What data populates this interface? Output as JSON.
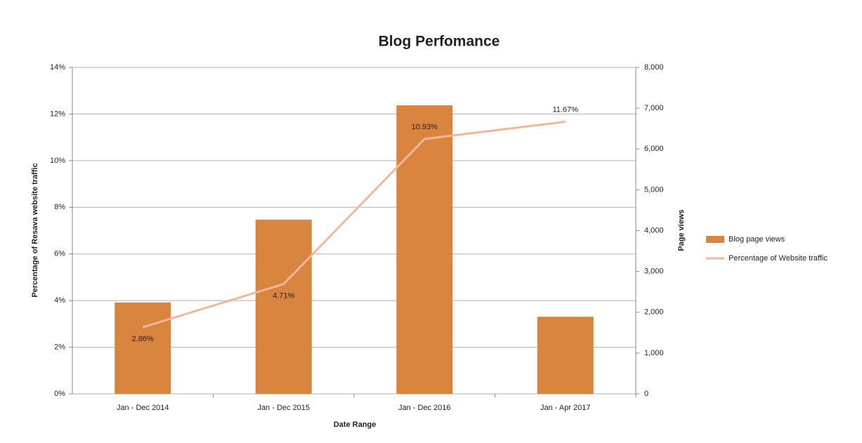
{
  "chart_data": {
    "type": "combo",
    "title": "Blog Perfomance",
    "x_label": "Date Range",
    "y_label": "Percentage of Resava website traffic",
    "y2_label": "Page views",
    "categories": [
      "Jan - Dec 2014",
      "Jan - Dec 2015",
      "Jan - Dec 2016",
      "Jan - Apr 2017"
    ],
    "series": [
      {
        "name": "Blog page views",
        "type": "bar",
        "axis": "y2",
        "color": "#d9843f",
        "values": [
          2240,
          4270,
          7070,
          1890
        ]
      },
      {
        "name": "Percentage of Website traffic",
        "type": "line",
        "axis": "y",
        "color": "#f2b79a",
        "values": [
          2.86,
          4.71,
          10.93,
          11.67
        ],
        "value_labels": [
          "2.86%",
          "4.71%",
          "10.93%",
          "11.67%"
        ]
      }
    ],
    "ylim": [
      0,
      14
    ],
    "yticks": [
      {
        "value": 0,
        "label": "0%"
      },
      {
        "value": 2,
        "label": "2%"
      },
      {
        "value": 4,
        "label": "4%"
      },
      {
        "value": 6,
        "label": "6%"
      },
      {
        "value": 8,
        "label": "8%"
      },
      {
        "value": 10,
        "label": "10%"
      },
      {
        "value": 12,
        "label": "12%"
      },
      {
        "value": 14,
        "label": "14%"
      }
    ],
    "y2lim": [
      0,
      8000
    ],
    "y2ticks": [
      0,
      {
        "value": 1000,
        "label": "1,000"
      },
      {
        "value": 2000,
        "label": "2,000"
      },
      {
        "value": 3000,
        "label": "3,000"
      },
      {
        "value": 4000,
        "label": "4,000"
      },
      {
        "value": 5000,
        "label": "5,000"
      },
      {
        "value": 6000,
        "label": "6,000"
      },
      {
        "value": 7000,
        "label": "7,000"
      },
      {
        "value": 8000,
        "label": "8,000"
      }
    ],
    "grid": true,
    "legend": "right"
  }
}
